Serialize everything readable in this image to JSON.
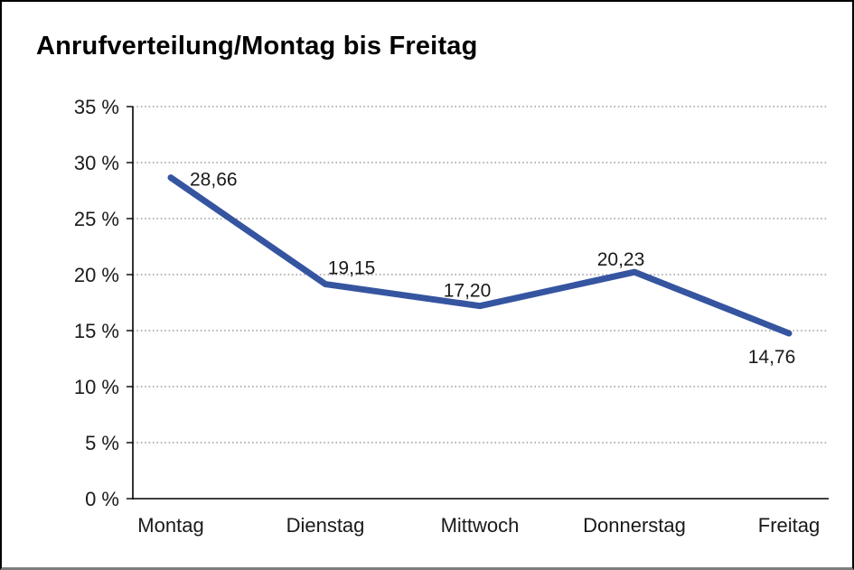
{
  "chart_data": {
    "type": "line",
    "title": "Anrufverteilung/Montag bis Freitag",
    "categories": [
      "Montag",
      "Dienstag",
      "Mittwoch",
      "Donnerstag",
      "Freitag"
    ],
    "values": [
      28.66,
      19.15,
      17.2,
      20.23,
      14.76
    ],
    "value_labels": [
      "28,66",
      "19,15",
      "17,20",
      "20,23",
      "14,76"
    ],
    "xlabel": "",
    "ylabel": "",
    "ylim": [
      0,
      35
    ],
    "ytick_step": 5,
    "ytick_labels": [
      "0 %",
      "5 %",
      "10 %",
      "15 %",
      "20 %",
      "25 %",
      "30 %",
      "35 %"
    ],
    "grid": "horizontal-dotted",
    "legend_position": "none",
    "colors": {
      "line": "#3555A0",
      "grid": "#8a8a8a",
      "axis": "#000000",
      "text": "#1a1a1a"
    }
  }
}
